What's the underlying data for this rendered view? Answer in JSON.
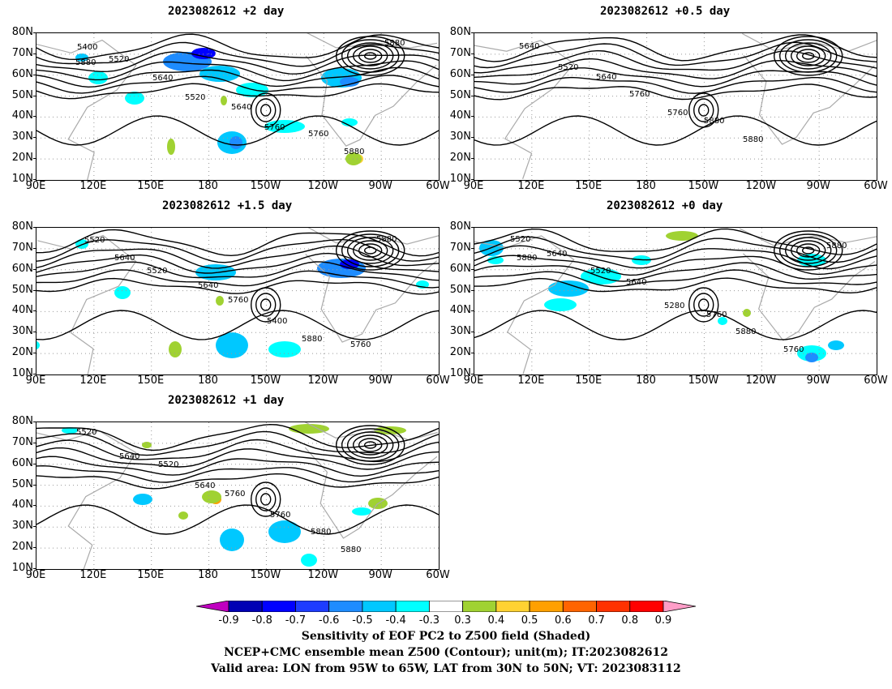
{
  "panels": [
    {
      "id": "p1",
      "title": "2023082612 +2 day",
      "lon_labels": [
        "90E",
        "120E",
        "150E",
        "180",
        "150W",
        "120W",
        "90W",
        "60W"
      ],
      "contour_labels": [
        "5400",
        "5520",
        "5640",
        "5520",
        "5640",
        "5760",
        "5760",
        "5880",
        "5880",
        "5880"
      ]
    },
    {
      "id": "p2",
      "title": "2023082612 +0.5 day",
      "lon_labels": [
        "90E",
        "120E",
        "150E",
        "180",
        "150W",
        "120W",
        "90W",
        "60W"
      ],
      "contour_labels": [
        "5640",
        "5520",
        "5640",
        "5760",
        "5760",
        "5880",
        "5880"
      ]
    },
    {
      "id": "p3",
      "title": "2023082612 +1.5 day",
      "lon_labels": [
        "90E",
        "120E",
        "150E",
        "180",
        "150W",
        "120W",
        "90W",
        "60W"
      ],
      "contour_labels": [
        "5520",
        "5640",
        "5520",
        "5640",
        "5760",
        "5400",
        "5880",
        "5760",
        "5880"
      ]
    },
    {
      "id": "p4",
      "title": "2023082612 +0 day",
      "lon_labels": [
        "90E",
        "120E",
        "150E",
        "180",
        "150W",
        "120W",
        "90W",
        "60W"
      ],
      "contour_labels": [
        "5520",
        "5640",
        "5520",
        "5640",
        "5280",
        "5760",
        "5880",
        "5760",
        "5880",
        "5880"
      ]
    },
    {
      "id": "p5",
      "title": "2023082612 +1 day",
      "lon_labels": [
        "90E",
        "120E",
        "150E",
        "180",
        "150W",
        "120W",
        "90W",
        "60W"
      ],
      "contour_labels": [
        "5520",
        "5640",
        "5520",
        "5640",
        "5760",
        "5760",
        "5880",
        "5880"
      ]
    }
  ],
  "lat_labels": [
    "80N",
    "70N",
    "60N",
    "50N",
    "40N",
    "30N",
    "20N",
    "10N"
  ],
  "colorbar": {
    "levels": [
      "-0.9",
      "-0.8",
      "-0.7",
      "-0.6",
      "-0.5",
      "-0.4",
      "-0.3",
      "0.3",
      "0.4",
      "0.5",
      "0.6",
      "0.7",
      "0.8",
      "0.9"
    ],
    "colors": [
      "#c000c0",
      "#0000b4",
      "#0000ff",
      "#1e3cff",
      "#1e8cff",
      "#00c8ff",
      "#00ffff",
      "#ffffff",
      "#a0d232",
      "#ffd232",
      "#ffa000",
      "#ff6400",
      "#ff3200",
      "#ff0000",
      "#ff9ec8"
    ]
  },
  "caption": {
    "line1": "Sensitivity of EOF PC2 to Z500 field (Shaded)",
    "line2": "NCEP+CMC ensemble mean Z500 (Contour); unit(m); IT:2023082612",
    "line3": "Valid area: LON from 95W to 65W, LAT from 30N to 50N; VT: 2023083112"
  }
}
